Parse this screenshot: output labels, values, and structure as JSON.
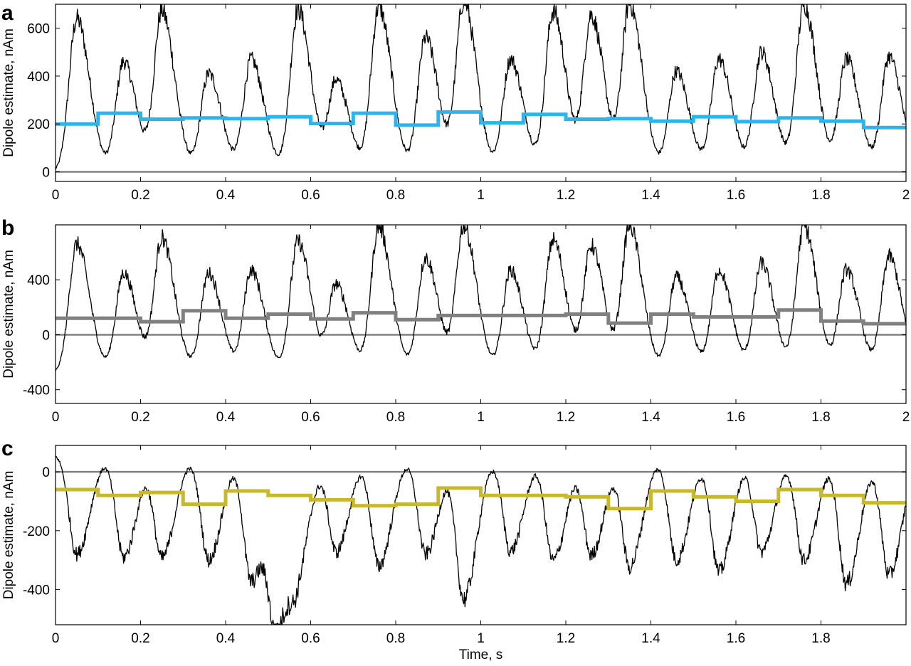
{
  "figure": {
    "xlabel": "Time, s"
  },
  "chart_data": [
    {
      "type": "line",
      "panel": "a",
      "ylabel": "Dipole estimate, nAm",
      "xlim": [
        0,
        2.0
      ],
      "ylim": [
        -40,
        700
      ],
      "x_ticks": [
        0,
        0.2,
        0.4,
        0.6,
        0.8,
        1,
        1.2,
        1.4,
        1.6,
        1.8,
        2
      ],
      "x_tick_labels": [
        "0",
        "0.2",
        "0.4",
        "0.6",
        "0.8",
        "1",
        "1.2",
        "1.4",
        "1.6",
        "1.8",
        "2"
      ],
      "y_ticks": [
        0,
        200,
        400,
        600
      ],
      "y_tick_labels": [
        "0",
        "200",
        "400",
        "600"
      ],
      "zero_line": 0,
      "signal": {
        "color": "#000000",
        "baseline": 0,
        "peaks": [
          {
            "t": 0.05,
            "a": 640
          },
          {
            "t": 0.16,
            "a": 460
          },
          {
            "t": 0.25,
            "a": 670
          },
          {
            "t": 0.36,
            "a": 410
          },
          {
            "t": 0.46,
            "a": 470
          },
          {
            "t": 0.57,
            "a": 680
          },
          {
            "t": 0.66,
            "a": 380
          },
          {
            "t": 0.76,
            "a": 690
          },
          {
            "t": 0.87,
            "a": 560
          },
          {
            "t": 0.96,
            "a": 710
          },
          {
            "t": 1.07,
            "a": 470
          },
          {
            "t": 1.17,
            "a": 670
          },
          {
            "t": 1.26,
            "a": 650
          },
          {
            "t": 1.35,
            "a": 700
          },
          {
            "t": 1.46,
            "a": 420
          },
          {
            "t": 1.56,
            "a": 470
          },
          {
            "t": 1.66,
            "a": 500
          },
          {
            "t": 1.76,
            "a": 700
          },
          {
            "t": 1.86,
            "a": 470
          },
          {
            "t": 1.96,
            "a": 480
          }
        ]
      },
      "step_series": {
        "color": "#2cb4ef",
        "edges": [
          0,
          0.1,
          0.2,
          0.3,
          0.4,
          0.5,
          0.6,
          0.7,
          0.8,
          0.9,
          1.0,
          1.1,
          1.2,
          1.3,
          1.4,
          1.5,
          1.6,
          1.7,
          1.8,
          1.9,
          2.0
        ],
        "values": [
          200,
          245,
          220,
          225,
          222,
          230,
          202,
          245,
          195,
          250,
          205,
          240,
          220,
          222,
          212,
          230,
          210,
          225,
          212,
          185
        ]
      }
    },
    {
      "type": "line",
      "panel": "b",
      "ylabel": "Dipole estimate, nAm",
      "xlim": [
        0,
        2.0
      ],
      "ylim": [
        -500,
        800
      ],
      "x_ticks": [
        0,
        0.2,
        0.4,
        0.6,
        0.8,
        1,
        1.2,
        1.4,
        1.6,
        1.8,
        2
      ],
      "x_tick_labels": [
        "0",
        "0.2",
        "0.4",
        "0.6",
        "0.8",
        "1",
        "1.2",
        "1.4",
        "1.6",
        "1.8",
        "2"
      ],
      "y_ticks": [
        -400,
        0,
        400
      ],
      "y_tick_labels": [
        "-400",
        "0",
        "400"
      ],
      "zero_line": 0,
      "signal": {
        "color": "#000000",
        "baseline": -280,
        "peaks": [
          {
            "t": 0.05,
            "a": 660
          },
          {
            "t": 0.16,
            "a": 450
          },
          {
            "t": 0.25,
            "a": 700
          },
          {
            "t": 0.36,
            "a": 450
          },
          {
            "t": 0.46,
            "a": 470
          },
          {
            "t": 0.57,
            "a": 680
          },
          {
            "t": 0.66,
            "a": 360
          },
          {
            "t": 0.76,
            "a": 790
          },
          {
            "t": 0.87,
            "a": 560
          },
          {
            "t": 0.96,
            "a": 790
          },
          {
            "t": 1.07,
            "a": 470
          },
          {
            "t": 1.17,
            "a": 690
          },
          {
            "t": 1.26,
            "a": 640
          },
          {
            "t": 1.35,
            "a": 790
          },
          {
            "t": 1.46,
            "a": 420
          },
          {
            "t": 1.56,
            "a": 470
          },
          {
            "t": 1.66,
            "a": 520
          },
          {
            "t": 1.76,
            "a": 790
          },
          {
            "t": 1.86,
            "a": 470
          },
          {
            "t": 1.96,
            "a": 570
          }
        ]
      },
      "step_series": {
        "color": "#808080",
        "edges": [
          0,
          0.1,
          0.2,
          0.3,
          0.4,
          0.5,
          0.6,
          0.7,
          0.8,
          0.9,
          1.0,
          1.1,
          1.2,
          1.3,
          1.4,
          1.5,
          1.6,
          1.7,
          1.8,
          1.9,
          2.0
        ],
        "values": [
          120,
          120,
          95,
          175,
          120,
          150,
          115,
          160,
          110,
          140,
          140,
          140,
          150,
          85,
          150,
          130,
          130,
          180,
          100,
          80
        ]
      }
    },
    {
      "type": "line",
      "panel": "c",
      "ylabel": "Dipole estimate, nAm",
      "xlim": [
        0,
        2.0
      ],
      "ylim": [
        -520,
        90
      ],
      "x_ticks": [
        0,
        0.2,
        0.4,
        0.6,
        0.8,
        1,
        1.2,
        1.4,
        1.6,
        1.8
      ],
      "x_tick_labels": [
        "0",
        "0.2",
        "0.4",
        "0.6",
        "0.8",
        "1",
        "1.2",
        "1.4",
        "1.6",
        "1.8"
      ],
      "y_ticks": [
        -400,
        -200,
        0
      ],
      "y_tick_labels": [
        "-400",
        "-200",
        "0"
      ],
      "zero_line": 0,
      "signal": {
        "color": "#000000",
        "baseline": 60,
        "peaks": [
          {
            "t": 0.05,
            "a": -280
          },
          {
            "t": 0.16,
            "a": -290
          },
          {
            "t": 0.25,
            "a": -290
          },
          {
            "t": 0.36,
            "a": -300
          },
          {
            "t": 0.46,
            "a": -370
          },
          {
            "t": 0.52,
            "a": -490
          },
          {
            "t": 0.57,
            "a": -260
          },
          {
            "t": 0.66,
            "a": -270
          },
          {
            "t": 0.76,
            "a": -320
          },
          {
            "t": 0.87,
            "a": -280
          },
          {
            "t": 0.96,
            "a": -430
          },
          {
            "t": 1.07,
            "a": -270
          },
          {
            "t": 1.17,
            "a": -300
          },
          {
            "t": 1.26,
            "a": -280
          },
          {
            "t": 1.35,
            "a": -320
          },
          {
            "t": 1.46,
            "a": -300
          },
          {
            "t": 1.56,
            "a": -340
          },
          {
            "t": 1.66,
            "a": -270
          },
          {
            "t": 1.76,
            "a": -300
          },
          {
            "t": 1.86,
            "a": -380
          },
          {
            "t": 1.96,
            "a": -350
          }
        ]
      },
      "step_series": {
        "color": "#c8b82a",
        "edges": [
          0,
          0.1,
          0.2,
          0.3,
          0.4,
          0.5,
          0.6,
          0.7,
          0.8,
          0.9,
          1.0,
          1.1,
          1.2,
          1.3,
          1.4,
          1.5,
          1.6,
          1.7,
          1.8,
          1.9,
          2.0
        ],
        "values": [
          -60,
          -80,
          -70,
          -110,
          -65,
          -80,
          -95,
          -115,
          -110,
          -55,
          -80,
          -80,
          -85,
          -125,
          -65,
          -85,
          -100,
          -60,
          -80,
          -105
        ]
      }
    }
  ]
}
